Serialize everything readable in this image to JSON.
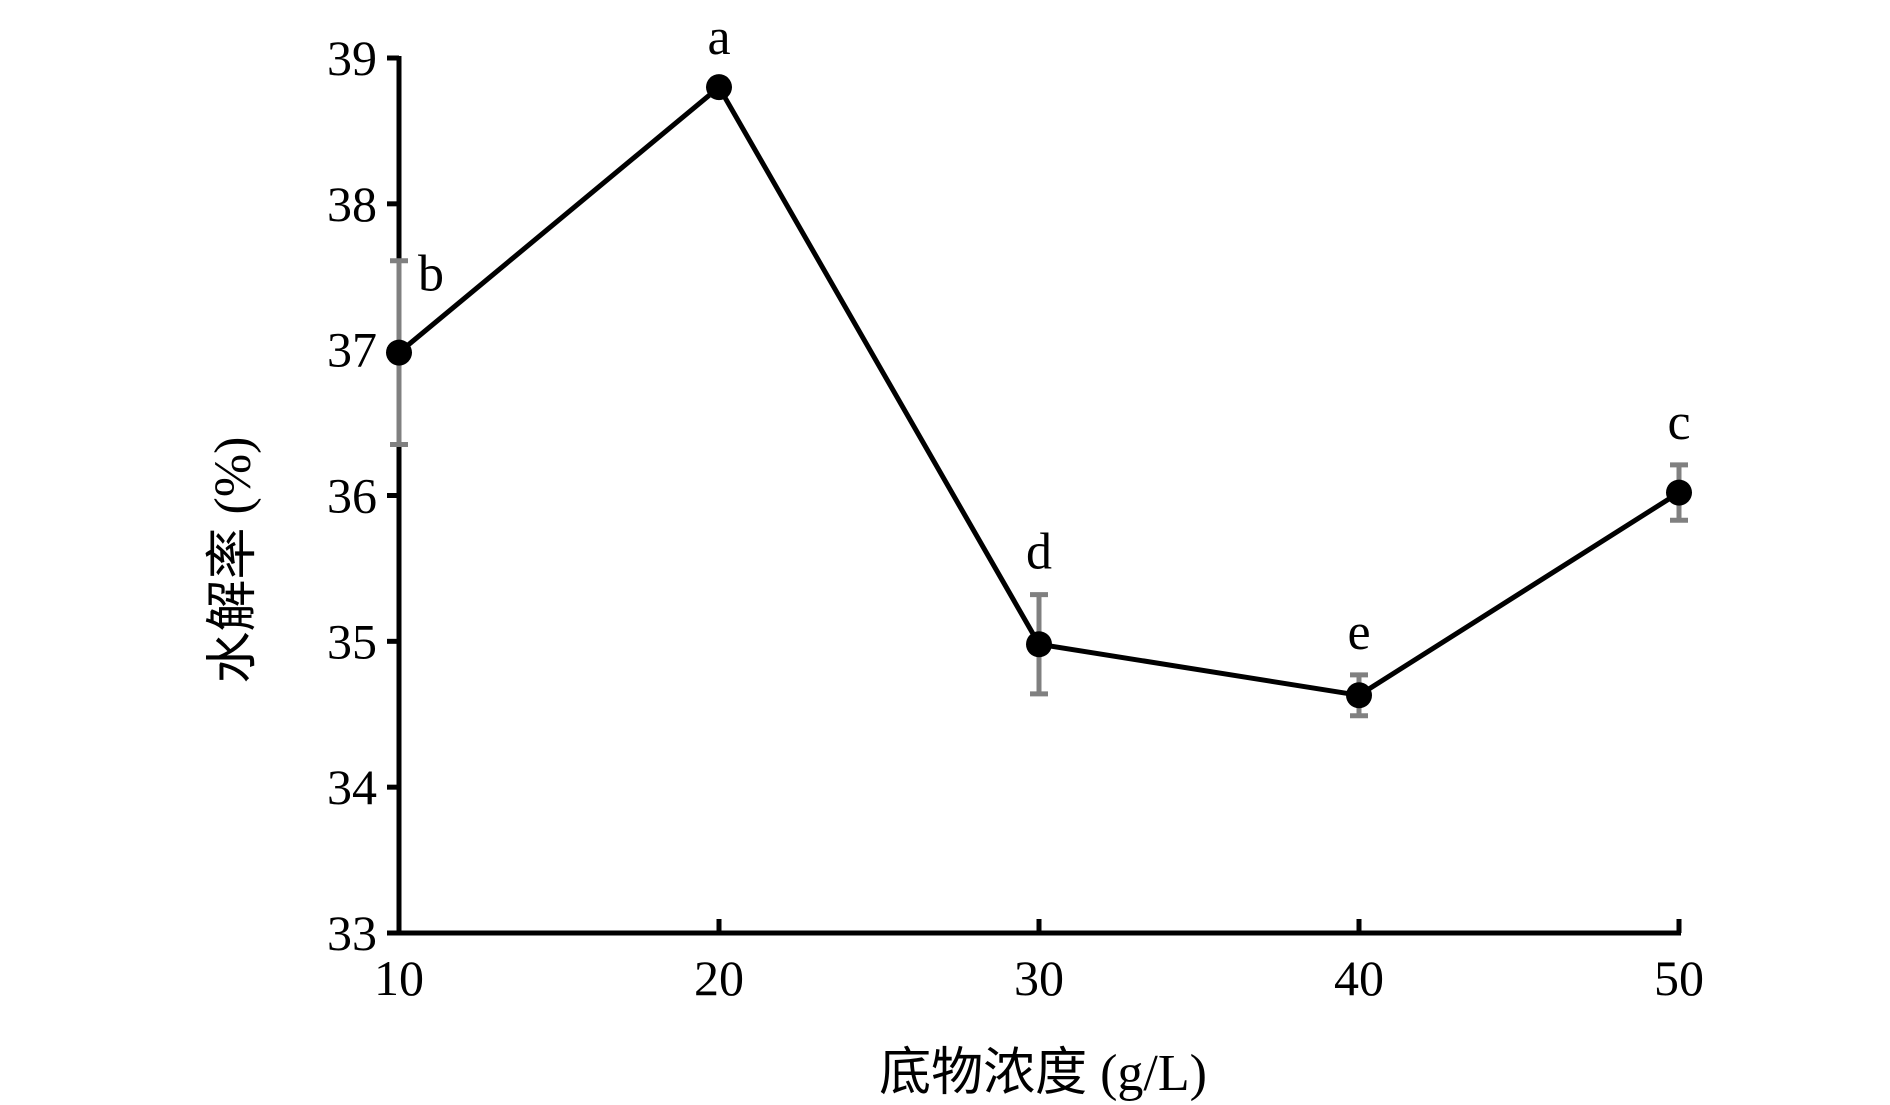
{
  "chart_data": {
    "type": "line",
    "x_label": "底物浓度 (g/L)",
    "y_label": "水解率 (%)",
    "x": [
      10,
      20,
      30,
      40,
      50
    ],
    "series": [
      {
        "name": "水解率",
        "color": "#000000",
        "values": [
          36.98,
          38.8,
          34.98,
          34.63,
          36.02
        ],
        "errors": [
          0.63,
          0.05,
          0.34,
          0.14,
          0.19
        ],
        "error_color": "#808080",
        "letters": [
          "b",
          "a",
          "d",
          "e",
          "c"
        ]
      }
    ],
    "xlim": [
      10,
      50
    ],
    "xticks": [
      10,
      20,
      30,
      40,
      50
    ],
    "ylim": [
      33,
      39
    ],
    "yticks": [
      33,
      34,
      35,
      36,
      37,
      38,
      39
    ],
    "grid": false
  }
}
